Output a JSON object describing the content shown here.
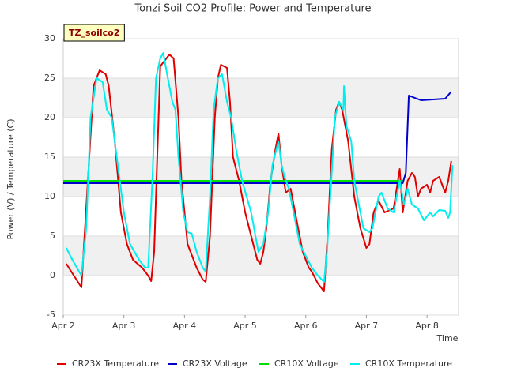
{
  "chart_data": {
    "type": "line",
    "title": "Tonzi Soil CO2 Profile: Power and Temperature",
    "annotation": "TZ_soilco2",
    "xlabel": "Time",
    "ylabel": "Power (V) / Temperature (C)",
    "xlim": [
      2,
      8.52
    ],
    "xticks": [
      {
        "value": 2,
        "label": "Apr 2"
      },
      {
        "value": 3,
        "label": "Apr 3"
      },
      {
        "value": 4,
        "label": "Apr 4"
      },
      {
        "value": 5,
        "label": "Apr 5"
      },
      {
        "value": 6,
        "label": "Apr 6"
      },
      {
        "value": 7,
        "label": "Apr 7"
      },
      {
        "value": 8,
        "label": "Apr 8"
      }
    ],
    "ylim": [
      -5,
      30
    ],
    "yticks": [
      -5,
      0,
      5,
      10,
      15,
      20,
      25,
      30
    ],
    "grid": true,
    "legend": "bottom",
    "series": [
      {
        "name": "CR23X Temperature",
        "color": "#e00000",
        "x": [
          2.05,
          2.3,
          2.5,
          2.6,
          2.7,
          2.75,
          2.85,
          2.95,
          3.05,
          3.15,
          3.3,
          3.4,
          3.45,
          3.5,
          3.55,
          3.6,
          3.7,
          3.75,
          3.82,
          3.9,
          3.95,
          4.0,
          4.05,
          4.1,
          4.2,
          4.3,
          4.35,
          4.42,
          4.5,
          4.55,
          4.6,
          4.7,
          4.75,
          4.8,
          4.9,
          5.0,
          5.1,
          5.2,
          5.25,
          5.3,
          5.35,
          5.42,
          5.5,
          5.55,
          5.6,
          5.67,
          5.75,
          5.85,
          5.95,
          6.05,
          6.1,
          6.2,
          6.3,
          6.36,
          6.43,
          6.5,
          6.55,
          6.6,
          6.7,
          6.8,
          6.9,
          7.0,
          7.05,
          7.12,
          7.2,
          7.3,
          7.45,
          7.55,
          7.6,
          7.68,
          7.75,
          7.8,
          7.85,
          7.9,
          8.0,
          8.05,
          8.1,
          8.2,
          8.3,
          8.35,
          8.4
        ],
        "values": [
          1.5,
          -1.5,
          24,
          26,
          25.5,
          24,
          17,
          8,
          4,
          2,
          1,
          0,
          -0.7,
          3,
          15,
          26.5,
          27.5,
          28,
          27.5,
          20,
          12,
          8,
          4,
          3,
          1,
          -0.5,
          -0.8,
          5,
          20,
          25,
          26.7,
          26.3,
          22,
          15,
          12,
          8,
          5,
          2,
          1.5,
          3,
          6,
          12,
          16,
          18,
          14,
          10.5,
          11,
          7,
          3,
          1,
          0.5,
          -1,
          -2,
          5,
          16,
          21,
          22,
          21,
          17,
          10,
          6,
          3.5,
          4,
          8,
          9.5,
          8,
          8.5,
          13.5,
          8,
          12,
          13,
          12.5,
          10,
          11,
          11.5,
          10.5,
          12,
          12.5,
          10.5,
          12,
          14.5
        ]
      },
      {
        "name": "CR23X Voltage",
        "color": "#0000cc",
        "x": [
          2.0,
          7.6,
          7.65,
          7.7,
          7.8,
          7.9,
          8.1,
          8.3,
          8.4
        ],
        "values": [
          11.7,
          11.7,
          13,
          22.8,
          22.5,
          22.2,
          22.3,
          22.4,
          23.3
        ]
      },
      {
        "name": "CR10X Voltage",
        "color": "#00dd00",
        "x": [
          2.0,
          7.6
        ],
        "values": [
          12.0,
          12.0
        ]
      },
      {
        "name": "CR10X Temperature",
        "color": "#00eeee",
        "x": [
          2.05,
          2.15,
          2.3,
          2.38,
          2.45,
          2.55,
          2.65,
          2.72,
          2.8,
          2.9,
          3.0,
          3.1,
          3.25,
          3.35,
          3.4,
          3.47,
          3.53,
          3.6,
          3.65,
          3.7,
          3.8,
          3.85,
          3.9,
          3.98,
          4.05,
          4.12,
          4.2,
          4.3,
          4.35,
          4.42,
          4.48,
          4.55,
          4.62,
          4.7,
          4.77,
          4.85,
          4.95,
          5.1,
          5.17,
          5.22,
          5.3,
          5.38,
          5.45,
          5.55,
          5.6,
          5.65,
          5.72,
          5.8,
          5.9,
          6.0,
          6.1,
          6.2,
          6.3,
          6.35,
          6.42,
          6.48,
          6.55,
          6.62,
          6.63,
          6.67,
          6.75,
          6.8,
          6.9,
          6.95,
          7.05,
          7.1,
          7.2,
          7.25,
          7.35,
          7.45,
          7.55,
          7.62,
          7.68,
          7.75,
          7.85,
          7.95,
          8.05,
          8.1,
          8.2,
          8.3,
          8.35,
          8.38,
          8.42
        ],
        "values": [
          3.5,
          2,
          0,
          6,
          20,
          25,
          24.5,
          21,
          20,
          14,
          8,
          4,
          2,
          1,
          1,
          12,
          25,
          27.5,
          28.2,
          26,
          22,
          21,
          15,
          8,
          5.5,
          5.3,
          3,
          1,
          0.5,
          10,
          21,
          25,
          25.5,
          22,
          20,
          16,
          12,
          8,
          5,
          3,
          4,
          8,
          14,
          17,
          14,
          12.5,
          11,
          8,
          4,
          2.5,
          1,
          0,
          -0.8,
          3,
          12,
          20,
          22,
          21,
          24,
          19,
          17,
          12,
          8,
          6,
          5.5,
          6,
          10,
          10.5,
          8.5,
          8,
          12,
          9,
          11,
          9,
          8.5,
          7,
          8,
          7.5,
          8.3,
          8.2,
          7.3,
          8,
          14
        ]
      }
    ]
  }
}
